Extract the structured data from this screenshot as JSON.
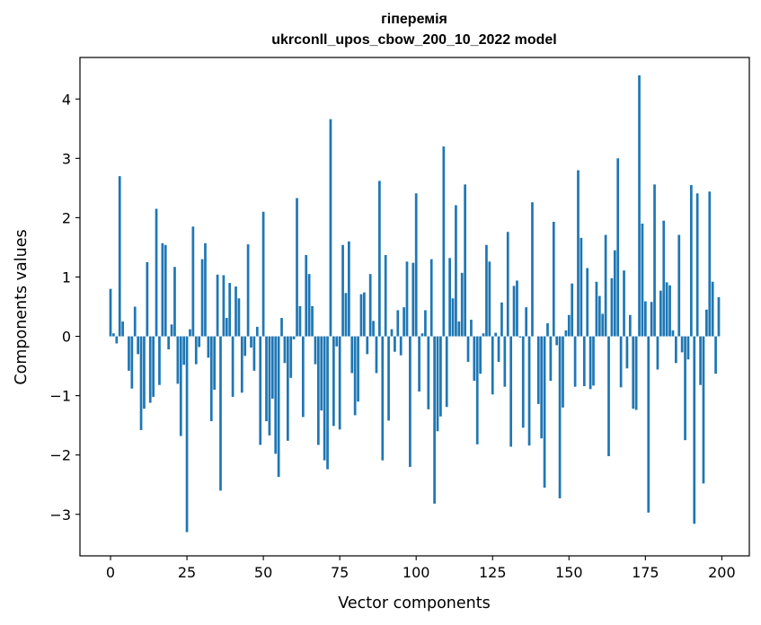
{
  "chart_data": {
    "type": "bar",
    "title_line1": "гіперемія",
    "title_line2": "ukrconll_upos_cbow_200_10_2022 model",
    "xlabel": "Vector components",
    "ylabel": "Components values",
    "xlim": [
      -10,
      209
    ],
    "ylim": [
      -3.7,
      4.7
    ],
    "xticks": [
      0,
      25,
      50,
      75,
      100,
      125,
      150,
      175,
      200
    ],
    "xtick_labels": [
      "0",
      "25",
      "50",
      "75",
      "100",
      "125",
      "150",
      "175",
      "200"
    ],
    "yticks": [
      -3,
      -2,
      -1,
      0,
      1,
      2,
      3,
      4
    ],
    "ytick_labels": [
      "−3",
      "−2",
      "−1",
      "0",
      "1",
      "2",
      "3",
      "4"
    ],
    "bar_color": "#1f77b4",
    "grid": false,
    "x": [
      0,
      1,
      2,
      3,
      4,
      5,
      6,
      7,
      8,
      9,
      10,
      11,
      12,
      13,
      14,
      15,
      16,
      17,
      18,
      19,
      20,
      21,
      22,
      23,
      24,
      25,
      26,
      27,
      28,
      29,
      30,
      31,
      32,
      33,
      34,
      35,
      36,
      37,
      38,
      39,
      40,
      41,
      42,
      43,
      44,
      45,
      46,
      47,
      48,
      49,
      50,
      51,
      52,
      53,
      54,
      55,
      56,
      57,
      58,
      59,
      60,
      61,
      62,
      63,
      64,
      65,
      66,
      67,
      68,
      69,
      70,
      71,
      72,
      73,
      74,
      75,
      76,
      77,
      78,
      79,
      80,
      81,
      82,
      83,
      84,
      85,
      86,
      87,
      88,
      89,
      90,
      91,
      92,
      93,
      94,
      95,
      96,
      97,
      98,
      99,
      100,
      101,
      102,
      103,
      104,
      105,
      106,
      107,
      108,
      109,
      110,
      111,
      112,
      113,
      114,
      115,
      116,
      117,
      118,
      119,
      120,
      121,
      122,
      123,
      124,
      125,
      126,
      127,
      128,
      129,
      130,
      131,
      132,
      133,
      134,
      135,
      136,
      137,
      138,
      139,
      140,
      141,
      142,
      143,
      144,
      145,
      146,
      147,
      148,
      149,
      150,
      151,
      152,
      153,
      154,
      155,
      156,
      157,
      158,
      159,
      160,
      161,
      162,
      163,
      164,
      165,
      166,
      167,
      168,
      169,
      170,
      171,
      172,
      173,
      174,
      175,
      176,
      177,
      178,
      179,
      180,
      181,
      182,
      183,
      184,
      185,
      186,
      187,
      188,
      189,
      190,
      191,
      192,
      193,
      194,
      195,
      196,
      197,
      198,
      199
    ],
    "values": [
      0.8,
      0.05,
      -0.12,
      2.7,
      0.25,
      0.0,
      -0.58,
      -0.88,
      0.5,
      -0.3,
      -1.58,
      -1.22,
      1.25,
      -1.12,
      -1.02,
      2.15,
      -0.82,
      1.57,
      1.54,
      -0.22,
      0.2,
      1.17,
      -0.8,
      -1.68,
      -0.48,
      -3.3,
      0.12,
      1.85,
      -0.47,
      -0.18,
      1.3,
      1.57,
      -0.36,
      -1.43,
      -0.9,
      1.04,
      -2.6,
      1.03,
      0.31,
      0.9,
      -1.02,
      0.84,
      0.64,
      -0.95,
      -0.33,
      1.55,
      -0.19,
      -0.58,
      0.16,
      -1.83,
      2.1,
      -1.43,
      -1.67,
      -1.05,
      -1.98,
      -2.37,
      0.31,
      -0.45,
      -1.76,
      -0.7,
      -0.05,
      2.33,
      0.51,
      -1.36,
      1.37,
      1.05,
      0.51,
      -0.47,
      -1.83,
      -1.25,
      -2.09,
      -2.24,
      3.66,
      -1.51,
      -0.17,
      -1.57,
      1.54,
      0.73,
      1.6,
      -0.62,
      -1.33,
      -1.1,
      0.71,
      0.74,
      -0.3,
      1.05,
      0.26,
      -0.62,
      2.62,
      -2.09,
      1.37,
      -1.42,
      0.12,
      -0.26,
      0.44,
      -0.32,
      0.49,
      1.26,
      -2.2,
      1.24,
      2.41,
      -0.93,
      0.05,
      0.44,
      -1.23,
      1.3,
      -2.82,
      -1.6,
      -1.35,
      3.2,
      -1.19,
      1.32,
      0.64,
      2.21,
      0.25,
      1.07,
      2.56,
      -0.43,
      0.28,
      -0.75,
      -1.82,
      -0.63,
      0.05,
      1.54,
      1.26,
      -0.98,
      0.06,
      -0.43,
      0.57,
      -0.85,
      1.76,
      -1.86,
      0.85,
      0.94,
      -0.02,
      -1.54,
      0.49,
      -1.84,
      2.26,
      0.0,
      -1.14,
      -1.72,
      -2.55,
      0.22,
      -0.75,
      1.93,
      -0.15,
      -2.73,
      -1.2,
      0.1,
      0.36,
      0.89,
      -0.85,
      2.8,
      1.66,
      -0.84,
      1.15,
      -0.89,
      -0.83,
      0.92,
      0.68,
      0.38,
      1.71,
      -2.02,
      0.98,
      1.45,
      3.0,
      -0.86,
      1.11,
      -0.54,
      0.36,
      -1.22,
      -1.24,
      4.4,
      1.9,
      0.59,
      -2.97,
      0.58,
      2.56,
      -0.56,
      0.77,
      1.95,
      0.91,
      0.86,
      0.1,
      -0.45,
      1.71,
      -0.27,
      -1.75,
      -0.39,
      2.55,
      -3.16,
      2.41,
      -0.82,
      -2.48,
      0.45,
      2.44,
      0.92,
      -0.63,
      0.66
    ]
  }
}
